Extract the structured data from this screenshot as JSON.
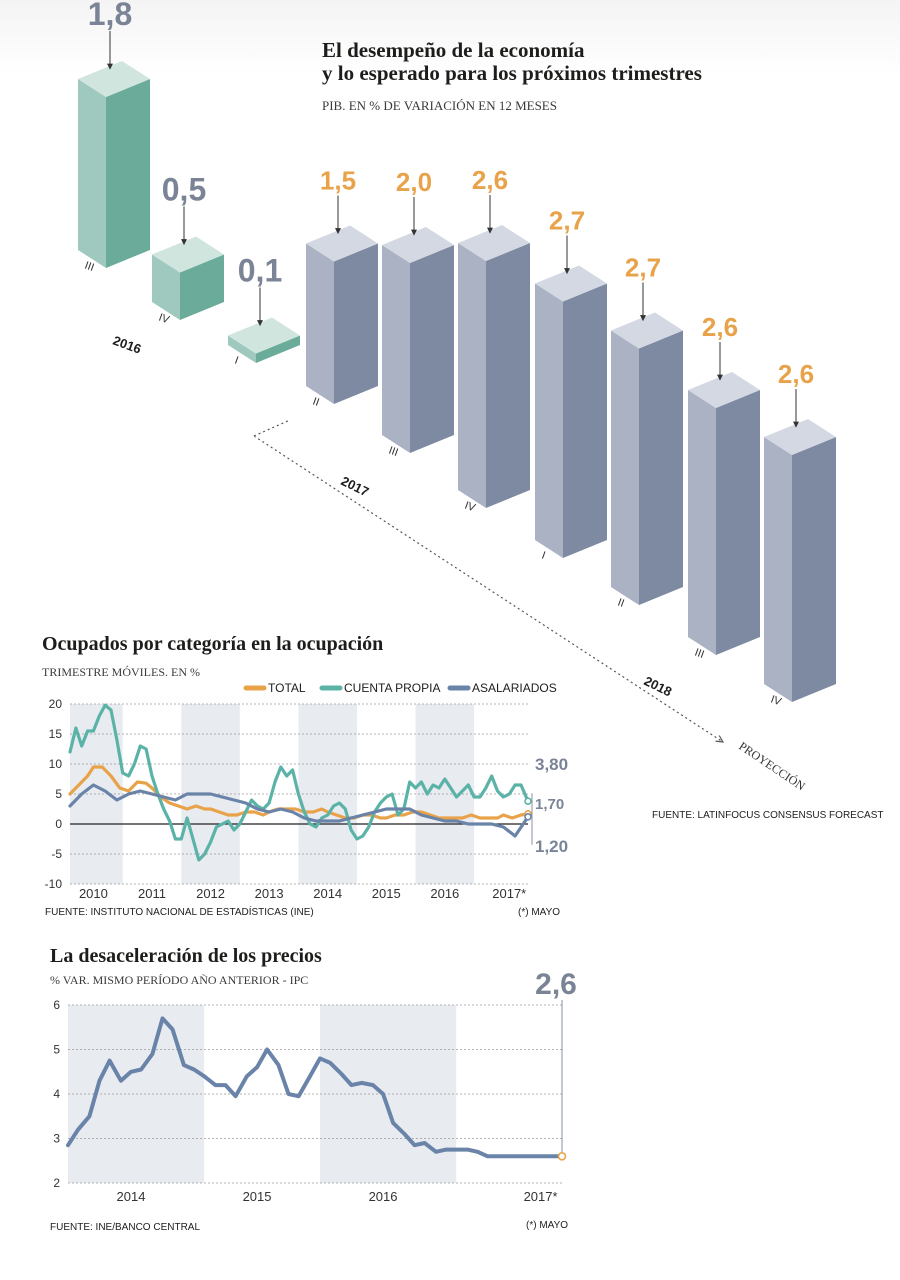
{
  "colors": {
    "green_front": "#9fc9bf",
    "green_side": "#6aab9a",
    "green_top": "#cfe5de",
    "blue_front": "#aab2c4",
    "blue_side": "#7d8aa1",
    "blue_top": "#d3d8e3",
    "orange": "#e8a34a",
    "gray_value": "#7a8496",
    "teal": "#5bb3a8",
    "slate": "#6a83a8",
    "band": "#e8ebf0"
  },
  "section1": {
    "title_line1": "El desempeño de la economía",
    "title_line2": "y lo esperado para los próximos trimestres",
    "subtitle": "PIB. EN % DE VARIACIÓN EN 12 MESES",
    "source": "FUENTE: LATINFOCUS CONSENSUS FORECAST",
    "projection_label": "PROYECCIÓN",
    "year_labels": [
      "2016",
      "2017",
      "2018"
    ]
  },
  "section2": {
    "title": "Ocupados por categoría en la ocupación",
    "subtitle": "TRIMESTRE MÓVILES. EN %",
    "source": "FUENTE: INSTITUTO NACIONAL DE ESTADÍSTICAS (INE)",
    "note": "(*) MAYO",
    "legend": [
      "TOTAL",
      "CUENTA PROPIA",
      "ASALARIADOS"
    ],
    "end_labels": [
      "3,80",
      "1,70",
      "1,20"
    ]
  },
  "section3": {
    "title": "La desaceleración de los precios",
    "subtitle": "% VAR. MISMO PERÍODO AÑO ANTERIOR - IPC",
    "source": "FUENTE: INE/BANCO CENTRAL",
    "note": "(*) MAYO",
    "end_label": "2,6"
  },
  "chart_data": [
    {
      "type": "bar",
      "title": "El desempeño de la economía y lo esperado para los próximos trimestres",
      "subtitle": "PIB. EN % DE VARIACIÓN EN 12 MESES",
      "categories": [
        "III",
        "IV",
        "I",
        "II",
        "III",
        "IV",
        "I",
        "II",
        "III",
        "IV"
      ],
      "years": [
        "2016",
        "2016",
        "2017",
        "2017",
        "2017",
        "2017",
        "2018",
        "2018",
        "2018",
        "2018"
      ],
      "values": [
        1.8,
        0.5,
        0.1,
        1.5,
        2.0,
        2.6,
        2.7,
        2.7,
        2.6,
        2.6
      ],
      "value_labels": [
        "1,8",
        "0,5",
        "0,1",
        "1,5",
        "2,0",
        "2,6",
        "2,7",
        "2,7",
        "2,6",
        "2,6"
      ],
      "projection": [
        false,
        false,
        false,
        true,
        true,
        true,
        true,
        true,
        true,
        true
      ]
    },
    {
      "type": "line",
      "title": "Ocupados por categoría en la ocupación",
      "subtitle": "TRIMESTRE MÓVILES. EN %",
      "x_ticks": [
        "2010",
        "2011",
        "2012",
        "2013",
        "2014",
        "2015",
        "2016",
        "2017*"
      ],
      "y_ticks": [
        "20",
        "15",
        "10",
        "5",
        "0",
        "-5",
        "-10"
      ],
      "ylim": [
        -10,
        20
      ],
      "xlim": [
        2009.6,
        2017.42
      ],
      "series": [
        {
          "name": "TOTAL",
          "x": [
            2009.6,
            2009.75,
            2009.9,
            2010.0,
            2010.15,
            2010.3,
            2010.45,
            2010.6,
            2010.75,
            2010.9,
            2011.0,
            2011.15,
            2011.3,
            2011.45,
            2011.6,
            2011.75,
            2011.9,
            2012.0,
            2012.15,
            2012.3,
            2012.45,
            2012.6,
            2012.75,
            2012.9,
            2013.0,
            2013.15,
            2013.3,
            2013.45,
            2013.6,
            2013.75,
            2013.9,
            2014.0,
            2014.15,
            2014.3,
            2014.45,
            2014.6,
            2014.75,
            2014.9,
            2015.0,
            2015.15,
            2015.3,
            2015.45,
            2015.6,
            2015.75,
            2015.9,
            2016.0,
            2016.15,
            2016.3,
            2016.45,
            2016.6,
            2016.75,
            2016.9,
            2017.0,
            2017.15,
            2017.3,
            2017.42
          ],
          "y": [
            5,
            6.5,
            8,
            9.5,
            9.5,
            8,
            6,
            5.5,
            7,
            6.8,
            6,
            4.5,
            3.5,
            3,
            2.5,
            3,
            2.5,
            2.5,
            2,
            1.5,
            1.5,
            2,
            2,
            1.5,
            2,
            2.5,
            2.5,
            2.5,
            2,
            2,
            2.5,
            2,
            1.5,
            1,
            1,
            1.5,
            1.5,
            1,
            1,
            1.5,
            1.5,
            2,
            2,
            1.5,
            1,
            1,
            1,
            1,
            1.5,
            1,
            1,
            1,
            1.5,
            1,
            1.5,
            1.7
          ]
        },
        {
          "name": "CUENTA PROPIA",
          "x": [
            2009.6,
            2009.7,
            2009.8,
            2009.9,
            2010.0,
            2010.1,
            2010.2,
            2010.3,
            2010.4,
            2010.5,
            2010.6,
            2010.7,
            2010.8,
            2010.9,
            2011.0,
            2011.1,
            2011.2,
            2011.3,
            2011.4,
            2011.5,
            2011.6,
            2011.7,
            2011.8,
            2011.9,
            2012.0,
            2012.1,
            2012.2,
            2012.3,
            2012.4,
            2012.5,
            2012.6,
            2012.7,
            2012.8,
            2012.9,
            2013.0,
            2013.1,
            2013.2,
            2013.3,
            2013.4,
            2013.5,
            2013.6,
            2013.7,
            2013.8,
            2013.9,
            2014.0,
            2014.1,
            2014.2,
            2014.3,
            2014.4,
            2014.5,
            2014.6,
            2014.7,
            2014.8,
            2014.9,
            2015.0,
            2015.1,
            2015.2,
            2015.3,
            2015.4,
            2015.5,
            2015.6,
            2015.7,
            2015.8,
            2015.9,
            2016.0,
            2016.1,
            2016.2,
            2016.3,
            2016.4,
            2016.5,
            2016.6,
            2016.7,
            2016.8,
            2016.9,
            2017.0,
            2017.1,
            2017.2,
            2017.3,
            2017.42
          ],
          "y": [
            12,
            16,
            13,
            15.5,
            15.5,
            18,
            19.8,
            19,
            14,
            8.5,
            8,
            10,
            13,
            12.5,
            8,
            5,
            2.5,
            0.5,
            -2.5,
            -2.5,
            1,
            -2.5,
            -6,
            -5,
            -3,
            -0.5,
            0,
            0.5,
            -1,
            0,
            2,
            4,
            3,
            2.5,
            3.5,
            7,
            9.5,
            8,
            9,
            5,
            2,
            0,
            -0.5,
            1,
            1.5,
            3,
            3.5,
            2.5,
            -1,
            -2.5,
            -2,
            -0.5,
            2,
            3.5,
            4.5,
            5,
            1.5,
            2.5,
            7,
            6,
            7,
            5,
            6.5,
            6,
            7.5,
            6,
            4.5,
            5.5,
            6.5,
            4.5,
            4.5,
            6,
            8,
            5.5,
            4.5,
            5,
            6.5,
            6.5,
            3.8
          ]
        },
        {
          "name": "ASALARIADOS",
          "x": [
            2009.6,
            2009.8,
            2010.0,
            2010.2,
            2010.4,
            2010.6,
            2010.8,
            2011.0,
            2011.2,
            2011.4,
            2011.6,
            2011.8,
            2012.0,
            2012.2,
            2012.4,
            2012.6,
            2012.8,
            2013.0,
            2013.2,
            2013.4,
            2013.6,
            2013.8,
            2014.0,
            2014.2,
            2014.4,
            2014.6,
            2014.8,
            2015.0,
            2015.2,
            2015.4,
            2015.6,
            2015.8,
            2016.0,
            2016.2,
            2016.4,
            2016.6,
            2016.8,
            2017.0,
            2017.2,
            2017.42
          ],
          "y": [
            3,
            5,
            6.5,
            5.5,
            4,
            5,
            5.5,
            5,
            4.5,
            4,
            5,
            5,
            5,
            4.5,
            4,
            3.5,
            2.5,
            2,
            2.5,
            2,
            1,
            0.5,
            0.5,
            0.5,
            1,
            1.5,
            2,
            2.5,
            2.5,
            2.5,
            1.5,
            1,
            0.5,
            0.5,
            0,
            0,
            0,
            -0.5,
            -2,
            1.2
          ]
        }
      ]
    },
    {
      "type": "line",
      "title": "La desaceleración de los precios",
      "subtitle": "% VAR. MISMO PERÍODO AÑO ANTERIOR - IPC",
      "x_ticks": [
        "2014",
        "2015",
        "2016",
        "2017*"
      ],
      "y_ticks": [
        "6",
        "5",
        "4",
        "3",
        "2"
      ],
      "ylim": [
        2,
        6
      ],
      "xlim": [
        2013.5,
        2017.42
      ],
      "series": [
        {
          "name": "IPC",
          "x": [
            2013.5,
            2013.58,
            2013.67,
            2013.75,
            2013.83,
            2013.92,
            2014.0,
            2014.08,
            2014.17,
            2014.25,
            2014.33,
            2014.42,
            2014.5,
            2014.58,
            2014.67,
            2014.75,
            2014.83,
            2014.92,
            2015.0,
            2015.08,
            2015.17,
            2015.25,
            2015.33,
            2015.42,
            2015.5,
            2015.58,
            2015.67,
            2015.75,
            2015.83,
            2015.92,
            2016.0,
            2016.08,
            2016.17,
            2016.25,
            2016.33,
            2016.42,
            2016.5,
            2016.58,
            2016.67,
            2016.75,
            2016.83,
            2016.92,
            2017.0,
            2017.08,
            2017.17,
            2017.25,
            2017.42
          ],
          "y": [
            2.85,
            3.2,
            3.5,
            4.3,
            4.75,
            4.3,
            4.5,
            4.55,
            4.9,
            5.7,
            5.45,
            4.65,
            4.55,
            4.4,
            4.2,
            4.2,
            3.95,
            4.4,
            4.6,
            5.0,
            4.65,
            4.0,
            3.95,
            4.4,
            4.8,
            4.7,
            4.45,
            4.2,
            4.25,
            4.2,
            4.0,
            3.35,
            3.1,
            2.85,
            2.9,
            2.7,
            2.75,
            2.75,
            2.75,
            2.7,
            2.6,
            2.6,
            2.6,
            2.6,
            2.6,
            2.6,
            2.6
          ]
        }
      ]
    }
  ]
}
